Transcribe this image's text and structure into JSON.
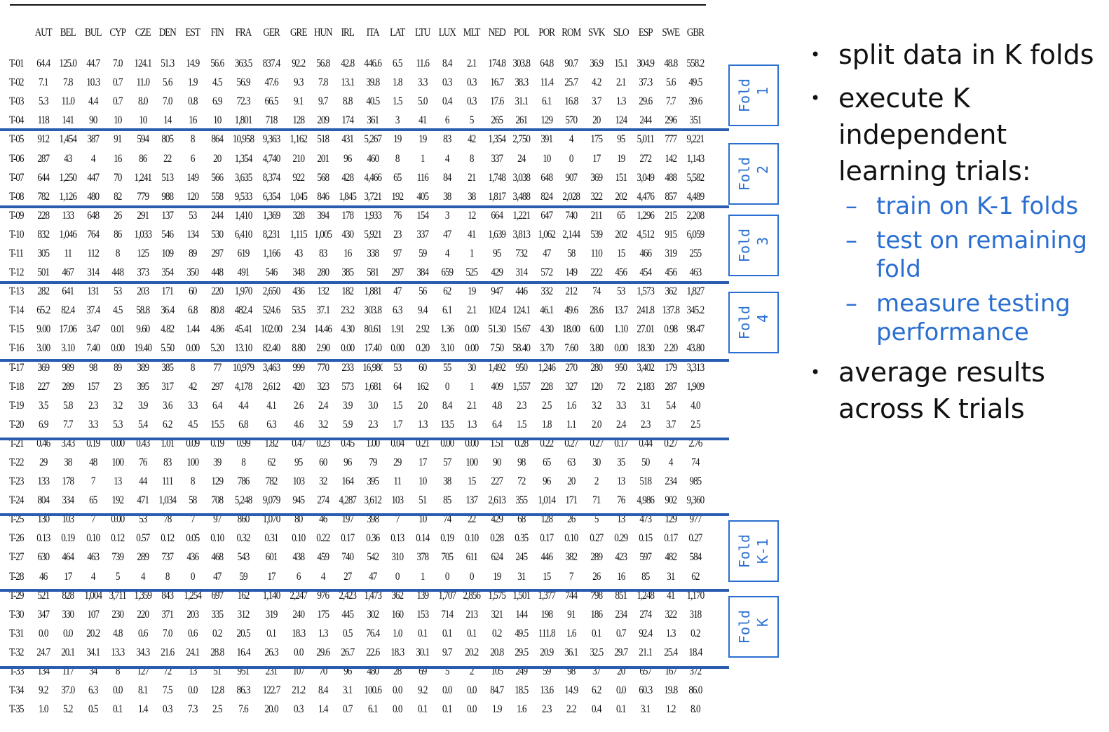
{
  "table": {
    "columns": [
      "",
      "AUT",
      "BEL",
      "BUL",
      "CYP",
      "CZE",
      "DEN",
      "EST",
      "FIN",
      "FRA",
      "GER",
      "GRE",
      "HUN",
      "IRL",
      "ITA",
      "LAT",
      "LTU",
      "LUX",
      "MLT",
      "NED",
      "POL",
      "POR",
      "ROM",
      "SVK",
      "SLO",
      "ESP",
      "SWE",
      "GBR"
    ],
    "rows": [
      [
        "T-01",
        "64.4",
        "125.0",
        "44.7",
        "7.0",
        "124.1",
        "51.3",
        "14.9",
        "56.6",
        "363.5",
        "837.4",
        "92.2",
        "56.8",
        "42.8",
        "446.6",
        "6.5",
        "11.6",
        "8.4",
        "2.1",
        "174.8",
        "303.8",
        "64.8",
        "90.7",
        "36.9",
        "15.1",
        "304.9",
        "48.8",
        "558.2"
      ],
      [
        "T-02",
        "7.1",
        "7.8",
        "10.3",
        "0.7",
        "11.0",
        "5.6",
        "1.9",
        "4.5",
        "56.9",
        "47.6",
        "9.3",
        "7.8",
        "13.1",
        "39.8",
        "1.8",
        "3.3",
        "0.3",
        "0.3",
        "16.7",
        "38.3",
        "11.4",
        "25.7",
        "4.2",
        "2.1",
        "37.3",
        "5.6",
        "49.5"
      ],
      [
        "T-03",
        "5.3",
        "11.0",
        "4.4",
        "0.7",
        "8.0",
        "7.0",
        "0.8",
        "6.9",
        "72.3",
        "66.5",
        "9.1",
        "9.7",
        "8.8",
        "40.5",
        "1.5",
        "5.0",
        "0.4",
        "0.3",
        "17.6",
        "31.1",
        "6.1",
        "16.8",
        "3.7",
        "1.3",
        "29.6",
        "7.7",
        "39.6"
      ],
      [
        "T-04",
        "118",
        "141",
        "90",
        "10",
        "10",
        "14",
        "16",
        "10",
        "1,801",
        "718",
        "128",
        "209",
        "174",
        "361",
        "3",
        "41",
        "6",
        "5",
        "265",
        "261",
        "129",
        "570",
        "20",
        "124",
        "244",
        "296",
        "351"
      ],
      [
        "T-05",
        "912",
        "1,454",
        "387",
        "91",
        "594",
        "805",
        "8",
        "864",
        "10,958",
        "9,363",
        "1,162",
        "518",
        "431",
        "5,267",
        "19",
        "19",
        "83",
        "42",
        "1,354",
        "2,750",
        "391",
        "4",
        "175",
        "95",
        "5,011",
        "777",
        "9,221"
      ],
      [
        "T-06",
        "287",
        "43",
        "4",
        "16",
        "86",
        "22",
        "6",
        "20",
        "1,354",
        "4,740",
        "210",
        "201",
        "96",
        "460",
        "8",
        "1",
        "4",
        "8",
        "337",
        "24",
        "10",
        "0",
        "17",
        "19",
        "272",
        "142",
        "1,143"
      ],
      [
        "T-07",
        "644",
        "1,250",
        "447",
        "70",
        "1,241",
        "513",
        "149",
        "566",
        "3,635",
        "8,374",
        "922",
        "568",
        "428",
        "4,466",
        "65",
        "116",
        "84",
        "21",
        "1,748",
        "3,038",
        "648",
        "907",
        "369",
        "151",
        "3,049",
        "488",
        "5,582"
      ],
      [
        "T-08",
        "782",
        "1,126",
        "480",
        "82",
        "779",
        "988",
        "120",
        "558",
        "9,533",
        "6,354",
        "1,045",
        "846",
        "1,845",
        "3,721",
        "192",
        "405",
        "38",
        "38",
        "1,817",
        "3,488",
        "824",
        "2,028",
        "322",
        "202",
        "4,476",
        "857",
        "4,489"
      ],
      [
        "T-09",
        "228",
        "133",
        "648",
        "26",
        "291",
        "137",
        "53",
        "244",
        "1,410",
        "1,369",
        "328",
        "394",
        "178",
        "1,933",
        "76",
        "154",
        "3",
        "12",
        "664",
        "1,221",
        "647",
        "740",
        "211",
        "65",
        "1,296",
        "215",
        "2,208"
      ],
      [
        "T-10",
        "832",
        "1,046",
        "764",
        "86",
        "1,033",
        "546",
        "134",
        "530",
        "6,410",
        "8,231",
        "1,115",
        "1,005",
        "430",
        "5,921",
        "23",
        "337",
        "47",
        "41",
        "1,639",
        "3,813",
        "1,062",
        "2,144",
        "539",
        "202",
        "4,512",
        "915",
        "6,059"
      ],
      [
        "T-11",
        "305",
        "11",
        "112",
        "8",
        "125",
        "109",
        "89",
        "297",
        "619",
        "1,166",
        "43",
        "83",
        "16",
        "338",
        "97",
        "59",
        "4",
        "1",
        "95",
        "732",
        "47",
        "58",
        "110",
        "15",
        "466",
        "319",
        "255"
      ],
      [
        "T-12",
        "501",
        "467",
        "314",
        "448",
        "373",
        "354",
        "350",
        "448",
        "491",
        "546",
        "348",
        "280",
        "385",
        "581",
        "297",
        "384",
        "659",
        "525",
        "429",
        "314",
        "572",
        "149",
        "222",
        "456",
        "454",
        "456",
        "463"
      ],
      [
        "T-13",
        "282",
        "641",
        "131",
        "53",
        "203",
        "171",
        "60",
        "220",
        "1,970",
        "2,650",
        "436",
        "132",
        "182",
        "1,881",
        "47",
        "56",
        "62",
        "19",
        "947",
        "446",
        "332",
        "212",
        "74",
        "53",
        "1,573",
        "362",
        "1,827"
      ],
      [
        "T-14",
        "65.2",
        "82.4",
        "37.4",
        "4.5",
        "58.8",
        "36.4",
        "6.8",
        "80.8",
        "482.4",
        "524.6",
        "53.5",
        "37.1",
        "23.2",
        "303.8",
        "6.3",
        "9.4",
        "6.1",
        "2.1",
        "102.4",
        "124.1",
        "46.1",
        "49.6",
        "28.6",
        "13.7",
        "241.8",
        "137.8",
        "345.2"
      ],
      [
        "T-15",
        "9.00",
        "17.06",
        "3.47",
        "0.01",
        "9.60",
        "4.82",
        "1.44",
        "4.86",
        "45.41",
        "102.00",
        "2.34",
        "14.46",
        "4.30",
        "80.61",
        "1.91",
        "2.92",
        "1.36",
        "0.00",
        "51.30",
        "15.67",
        "4.30",
        "18.00",
        "6.00",
        "1.10",
        "27.01",
        "0.98",
        "98.47"
      ],
      [
        "T-16",
        "3.00",
        "3.10",
        "7.40",
        "0.00",
        "19.40",
        "5.50",
        "0.00",
        "5.20",
        "13.10",
        "82.40",
        "8.80",
        "2.90",
        "0.00",
        "17.40",
        "0.00",
        "0.20",
        "3.10",
        "0.00",
        "7.50",
        "58.40",
        "3.70",
        "7.60",
        "3.80",
        "0.00",
        "18.30",
        "2.20",
        "43.80"
      ],
      [
        "T-17",
        "369",
        "989",
        "98",
        "89",
        "389",
        "385",
        "8",
        "77",
        "10,979",
        "3,463",
        "999",
        "770",
        "233",
        "16,980",
        "53",
        "60",
        "55",
        "30",
        "1,492",
        "950",
        "1,246",
        "270",
        "280",
        "950",
        "3,402",
        "179",
        "3,313"
      ],
      [
        "T-18",
        "227",
        "289",
        "157",
        "23",
        "395",
        "317",
        "42",
        "297",
        "4,178",
        "2,612",
        "420",
        "323",
        "573",
        "1,681",
        "64",
        "162",
        "0",
        "1",
        "409",
        "1,557",
        "228",
        "327",
        "120",
        "72",
        "2,183",
        "287",
        "1,909"
      ],
      [
        "T-19",
        "3.5",
        "5.8",
        "2.3",
        "3.2",
        "3.9",
        "3.6",
        "3.3",
        "6.4",
        "4.4",
        "4.1",
        "2.6",
        "2.4",
        "3.9",
        "3.0",
        "1.5",
        "2.0",
        "8.4",
        "2.1",
        "4.8",
        "2.3",
        "2.5",
        "1.6",
        "3.2",
        "3.3",
        "3.1",
        "5.4",
        "4.0"
      ],
      [
        "T-20",
        "6.9",
        "7.7",
        "3.3",
        "5.3",
        "5.4",
        "6.2",
        "4.5",
        "15.5",
        "6.8",
        "6.3",
        "4.6",
        "3.2",
        "5.9",
        "2.3",
        "1.7",
        "1.3",
        "13.5",
        "1.3",
        "6.4",
        "1.5",
        "1.8",
        "1.1",
        "2.0",
        "2.4",
        "2.3",
        "3.7",
        "2.5"
      ],
      [
        "T-21",
        "0.46",
        "3.43",
        "0.19",
        "0.00",
        "0.43",
        "1.01",
        "0.09",
        "0.19",
        "0.99",
        "1.82",
        "0.47",
        "0.23",
        "0.45",
        "1.00",
        "0.04",
        "0.21",
        "0.00",
        "0.00",
        "1.51",
        "0.28",
        "0.22",
        "0.27",
        "0.27",
        "0.17",
        "0.44",
        "0.27",
        "2.76"
      ],
      [
        "T-22",
        "29",
        "38",
        "48",
        "100",
        "76",
        "83",
        "100",
        "39",
        "8",
        "62",
        "95",
        "60",
        "96",
        "79",
        "29",
        "17",
        "57",
        "100",
        "90",
        "98",
        "65",
        "63",
        "30",
        "35",
        "50",
        "4",
        "74"
      ],
      [
        "T-23",
        "133",
        "178",
        "7",
        "13",
        "44",
        "111",
        "8",
        "129",
        "786",
        "782",
        "103",
        "32",
        "164",
        "395",
        "11",
        "10",
        "38",
        "15",
        "227",
        "72",
        "96",
        "20",
        "2",
        "13",
        "518",
        "234",
        "985"
      ],
      [
        "T-24",
        "804",
        "334",
        "65",
        "192",
        "471",
        "1,034",
        "58",
        "708",
        "5,248",
        "9,079",
        "945",
        "274",
        "4,287",
        "3,612",
        "103",
        "51",
        "85",
        "137",
        "2,613",
        "355",
        "1,014",
        "171",
        "71",
        "76",
        "4,986",
        "902",
        "9,360"
      ],
      [
        "T-25",
        "130",
        "103",
        "7",
        "0.00",
        "53",
        "78",
        "7",
        "97",
        "860",
        "1,070",
        "80",
        "46",
        "197",
        "398",
        "7",
        "10",
        "74",
        "22",
        "429",
        "68",
        "128",
        "26",
        "5",
        "13",
        "473",
        "129",
        "977"
      ],
      [
        "T-26",
        "0.13",
        "0.19",
        "0.10",
        "0.12",
        "0.57",
        "0.12",
        "0.05",
        "0.10",
        "0.32",
        "0.31",
        "0.10",
        "0.22",
        "0.17",
        "0.36",
        "0.13",
        "0.14",
        "0.19",
        "0.10",
        "0.28",
        "0.35",
        "0.17",
        "0.10",
        "0.27",
        "0.29",
        "0.15",
        "0.17",
        "0.27"
      ],
      [
        "T-27",
        "630",
        "464",
        "463",
        "739",
        "289",
        "737",
        "436",
        "468",
        "543",
        "601",
        "438",
        "459",
        "740",
        "542",
        "310",
        "378",
        "705",
        "611",
        "624",
        "245",
        "446",
        "382",
        "289",
        "423",
        "597",
        "482",
        "584"
      ],
      [
        "T-28",
        "46",
        "17",
        "4",
        "5",
        "4",
        "8",
        "0",
        "47",
        "59",
        "17",
        "6",
        "4",
        "27",
        "47",
        "0",
        "1",
        "0",
        "0",
        "19",
        "31",
        "15",
        "7",
        "26",
        "16",
        "85",
        "31",
        "62"
      ],
      [
        "T-29",
        "521",
        "828",
        "1,004",
        "3,711",
        "1,359",
        "843",
        "1,254",
        "697",
        "162",
        "1,140",
        "2,247",
        "976",
        "2,423",
        "1,473",
        "362",
        "139",
        "1,707",
        "2,856",
        "1,575",
        "1,501",
        "1,377",
        "744",
        "798",
        "851",
        "1,248",
        "41",
        "1,170"
      ],
      [
        "T-30",
        "347",
        "330",
        "107",
        "230",
        "220",
        "371",
        "203",
        "335",
        "312",
        "319",
        "240",
        "175",
        "445",
        "302",
        "160",
        "153",
        "714",
        "213",
        "321",
        "144",
        "198",
        "91",
        "186",
        "234",
        "274",
        "322",
        "318"
      ],
      [
        "T-31",
        "0.0",
        "0.0",
        "20.2",
        "4.8",
        "0.6",
        "7.0",
        "0.6",
        "0.2",
        "20.5",
        "0.1",
        "18.3",
        "1.3",
        "0.5",
        "76.4",
        "1.0",
        "0.1",
        "0.1",
        "0.1",
        "0.2",
        "49.5",
        "111.8",
        "1.6",
        "0.1",
        "0.7",
        "92.4",
        "1.3",
        "0.2"
      ],
      [
        "T-32",
        "24.7",
        "20.1",
        "34.1",
        "13.3",
        "34.3",
        "21.6",
        "24.1",
        "28.8",
        "16.4",
        "26.3",
        "0.0",
        "29.6",
        "26.7",
        "22.6",
        "18.3",
        "30.1",
        "9.7",
        "20.2",
        "20.8",
        "29.5",
        "20.9",
        "36.1",
        "32.5",
        "29.7",
        "21.1",
        "25.4",
        "18.4"
      ],
      [
        "T-33",
        "134",
        "117",
        "34",
        "8",
        "127",
        "72",
        "13",
        "51",
        "951",
        "231",
        "107",
        "70",
        "96",
        "480",
        "28",
        "69",
        "5",
        "2",
        "105",
        "249",
        "59",
        "98",
        "37",
        "20",
        "657",
        "167",
        "372"
      ],
      [
        "T-34",
        "9.2",
        "37.0",
        "6.3",
        "0.0",
        "8.1",
        "7.5",
        "0.0",
        "12.8",
        "86.3",
        "122.7",
        "21.2",
        "8.4",
        "3.1",
        "100.6",
        "0.0",
        "9.2",
        "0.0",
        "0.0",
        "84.7",
        "18.5",
        "13.6",
        "14.9",
        "6.2",
        "0.0",
        "60.3",
        "19.8",
        "86.0"
      ],
      [
        "T-35",
        "1.0",
        "5.2",
        "0.5",
        "0.1",
        "1.4",
        "0.3",
        "7.3",
        "2.5",
        "7.6",
        "20.0",
        "0.3",
        "1.4",
        "0.7",
        "6.1",
        "0.0",
        "0.1",
        "0.1",
        "0.0",
        "1.9",
        "1.6",
        "2.3",
        "2.2",
        "0.4",
        "0.1",
        "3.1",
        "1.2",
        "8.0"
      ]
    ]
  },
  "folds": [
    {
      "label": "Fold\n 1"
    },
    {
      "label": "Fold\n 2"
    },
    {
      "label": "Fold\n 3"
    },
    {
      "label": "Fold\n 4"
    },
    {
      "label": "Fold\nK-1"
    },
    {
      "label": "Fold\n K"
    }
  ],
  "notes": {
    "bullet1": "split data in K folds",
    "bullet2": "execute K independent learning trials:",
    "sub1": "train on K-1 folds",
    "sub2": "test on remaining fold",
    "sub3": "measure testing performance",
    "bullet3": "average results across K trials",
    "accent_color": "#2a6fd0"
  }
}
